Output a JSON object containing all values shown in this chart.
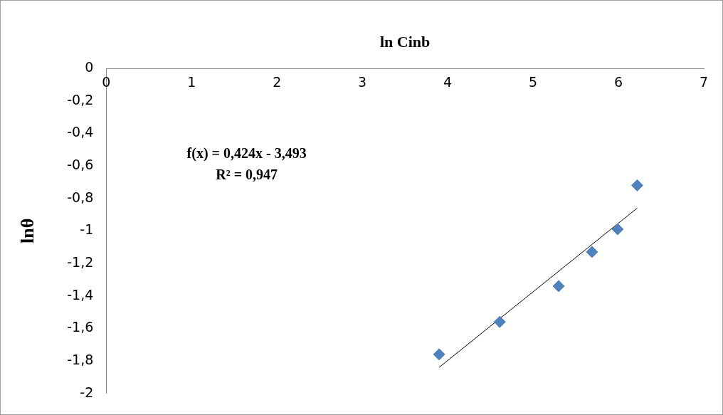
{
  "chart_data": {
    "type": "scatter",
    "xlabel": "ln Cinb",
    "ylabel": "lnθ",
    "xlim": [
      0,
      7
    ],
    "xticks": [
      0,
      1,
      2,
      3,
      4,
      5,
      6,
      7
    ],
    "ylim": [
      -2,
      0
    ],
    "yticks": [
      {
        "value": -2,
        "label": "-2"
      },
      {
        "value": -1.8,
        "label": "-1,8"
      },
      {
        "value": -1.6,
        "label": "-1,6"
      },
      {
        "value": -1.4,
        "label": "-1,4"
      },
      {
        "value": -1.2,
        "label": "-1,2"
      },
      {
        "value": -1,
        "label": "-1"
      },
      {
        "value": -0.8,
        "label": "-0,8"
      },
      {
        "value": -0.6,
        "label": "-0,6"
      },
      {
        "value": -0.4,
        "label": "-0,4"
      },
      {
        "value": -0.2,
        "label": "-0,2"
      },
      {
        "value": 0,
        "label": "0"
      }
    ],
    "grid": false,
    "legend": false,
    "marker": "diamond",
    "series": [
      {
        "color": "#4f81bd",
        "x": [
          3.9,
          4.61,
          5.3,
          5.69,
          5.99,
          6.22
        ],
        "values": [
          -1.76,
          -1.56,
          -1.34,
          -1.13,
          -0.99,
          -0.72
        ]
      },
      {
        "type": "line",
        "color": "#000000",
        "marker": "none",
        "x": [
          3.9,
          6.22
        ],
        "values": [
          -1.84,
          -0.86
        ]
      }
    ],
    "annotations": [
      "f(x) = 0,424x - 3,493",
      "R² = 0,947"
    ]
  }
}
